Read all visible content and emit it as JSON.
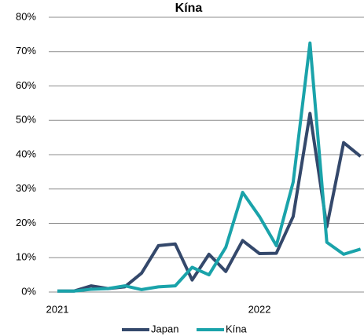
{
  "chart_data": {
    "type": "line",
    "title": "Kína",
    "categories": [
      "2021",
      null,
      null,
      null,
      null,
      null,
      null,
      null,
      null,
      null,
      null,
      null,
      "2022",
      null,
      null,
      null,
      null,
      null,
      null
    ],
    "series": [
      {
        "name": "Japan",
        "color": "#34486b",
        "values": [
          0.3,
          0.3,
          1.8,
          1,
          1.5,
          5.5,
          13.5,
          14,
          3.5,
          11,
          6,
          15,
          11.2,
          11.3,
          22,
          52,
          19,
          43.5,
          39.5
        ]
      },
      {
        "name": "Kína",
        "color": "#1aa3aa",
        "values": [
          0.3,
          0.3,
          0.8,
          1,
          1.8,
          0.7,
          1.5,
          1.8,
          7.2,
          5,
          13,
          29,
          22,
          13.5,
          32,
          72.5,
          14.5,
          11,
          12.5
        ]
      }
    ],
    "ylim": [
      0,
      80
    ],
    "yticks": [
      {
        "value": 0,
        "label": "0%"
      },
      {
        "value": 10,
        "label": "10%"
      },
      {
        "value": 20,
        "label": "20%"
      },
      {
        "value": 30,
        "label": "30%"
      },
      {
        "value": 40,
        "label": "40%"
      },
      {
        "value": 50,
        "label": "50%"
      },
      {
        "value": 60,
        "label": "60%"
      },
      {
        "value": 70,
        "label": "70%"
      },
      {
        "value": 80,
        "label": "80%"
      }
    ],
    "grid": true,
    "legend": "bottom"
  }
}
